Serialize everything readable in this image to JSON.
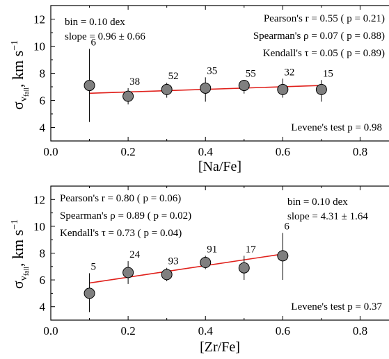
{
  "chart_data": [
    {
      "type": "scatter",
      "xlabel": "[Na/Fe]",
      "ylabel_main": "σ",
      "ylabel_sub": "v",
      "ylabel_subsub": "fall",
      "ylabel_unit": ", km s",
      "ylabel_exp": "−1",
      "xlim": [
        0.0,
        0.9
      ],
      "ylim": [
        3.0,
        13.0
      ],
      "xticks": [
        0.0,
        0.2,
        0.4,
        0.6,
        0.8
      ],
      "xtick_labels": [
        "0.0",
        "0.2",
        "0.4",
        "0.6",
        "0.8"
      ],
      "yticks": [
        4,
        6,
        8,
        10,
        12
      ],
      "ytick_labels": [
        "4",
        "6",
        "8",
        "10",
        "12"
      ],
      "points": [
        {
          "x": 0.1,
          "y": 7.1,
          "err_low": 4.4,
          "err_high": 9.8,
          "count": "6"
        },
        {
          "x": 0.2,
          "y": 6.3,
          "err_low": 5.7,
          "err_high": 6.9,
          "count": "38"
        },
        {
          "x": 0.3,
          "y": 6.8,
          "err_low": 6.2,
          "err_high": 7.3,
          "count": "52"
        },
        {
          "x": 0.4,
          "y": 6.9,
          "err_low": 5.9,
          "err_high": 7.7,
          "count": "35"
        },
        {
          "x": 0.5,
          "y": 7.1,
          "err_low": 6.5,
          "err_high": 7.5,
          "count": "55"
        },
        {
          "x": 0.6,
          "y": 6.8,
          "err_low": 6.2,
          "err_high": 7.6,
          "count": "32"
        },
        {
          "x": 0.7,
          "y": 6.8,
          "err_low": 5.9,
          "err_high": 7.5,
          "count": "15"
        }
      ],
      "fit": {
        "x": [
          0.1,
          0.7
        ],
        "y": [
          6.52,
          7.1
        ]
      },
      "annotations": {
        "bin": "bin = 0.10 dex",
        "slope": "slope = 0.96  ± 0.66",
        "pearson": "Pearson's  r = 0.55 ( p = 0.21)",
        "spearman": "Spearman's  ρ = 0.07 ( p = 0.88)",
        "kendall": "Kendall's  τ = 0.05 ( p = 0.89)",
        "levene": "Levene's test  p = 0.98"
      }
    },
    {
      "type": "scatter",
      "xlabel": "[Zr/Fe]",
      "ylabel_main": "σ",
      "ylabel_sub": "v",
      "ylabel_subsub": "fall",
      "ylabel_unit": ", km s",
      "ylabel_exp": "−1",
      "xlim": [
        0.0,
        0.9
      ],
      "ylim": [
        3.0,
        13.0
      ],
      "xticks": [
        0.0,
        0.2,
        0.4,
        0.6,
        0.8
      ],
      "xtick_labels": [
        "0.0",
        "0.2",
        "0.4",
        "0.6",
        "0.8"
      ],
      "yticks": [
        4,
        6,
        8,
        10,
        12
      ],
      "ytick_labels": [
        "4",
        "6",
        "8",
        "10",
        "12"
      ],
      "points": [
        {
          "x": 0.1,
          "y": 5.0,
          "err_low": 3.6,
          "err_high": 6.5,
          "count": "5"
        },
        {
          "x": 0.2,
          "y": 6.55,
          "err_low": 5.7,
          "err_high": 7.4,
          "count": "24"
        },
        {
          "x": 0.3,
          "y": 6.4,
          "err_low": 5.9,
          "err_high": 6.9,
          "count": "93"
        },
        {
          "x": 0.4,
          "y": 7.3,
          "err_low": 6.8,
          "err_high": 7.8,
          "count": "91"
        },
        {
          "x": 0.5,
          "y": 6.9,
          "err_low": 6.0,
          "err_high": 7.8,
          "count": "17"
        },
        {
          "x": 0.6,
          "y": 7.8,
          "err_low": 6.0,
          "err_high": 9.5,
          "count": "6"
        }
      ],
      "fit": {
        "x": [
          0.1,
          0.6
        ],
        "y": [
          5.77,
          7.93
        ]
      },
      "annotations": {
        "bin": "bin = 0.10 dex",
        "slope": "slope = 4.31  ± 1.64",
        "pearson": "Pearson's  r = 0.80 ( p = 0.06)",
        "spearman": "Spearman's  ρ = 0.89 ( p = 0.02)",
        "kendall": "Kendall's  τ = 0.73 ( p = 0.04)",
        "levene": "Levene's test  p = 0.37"
      }
    }
  ]
}
